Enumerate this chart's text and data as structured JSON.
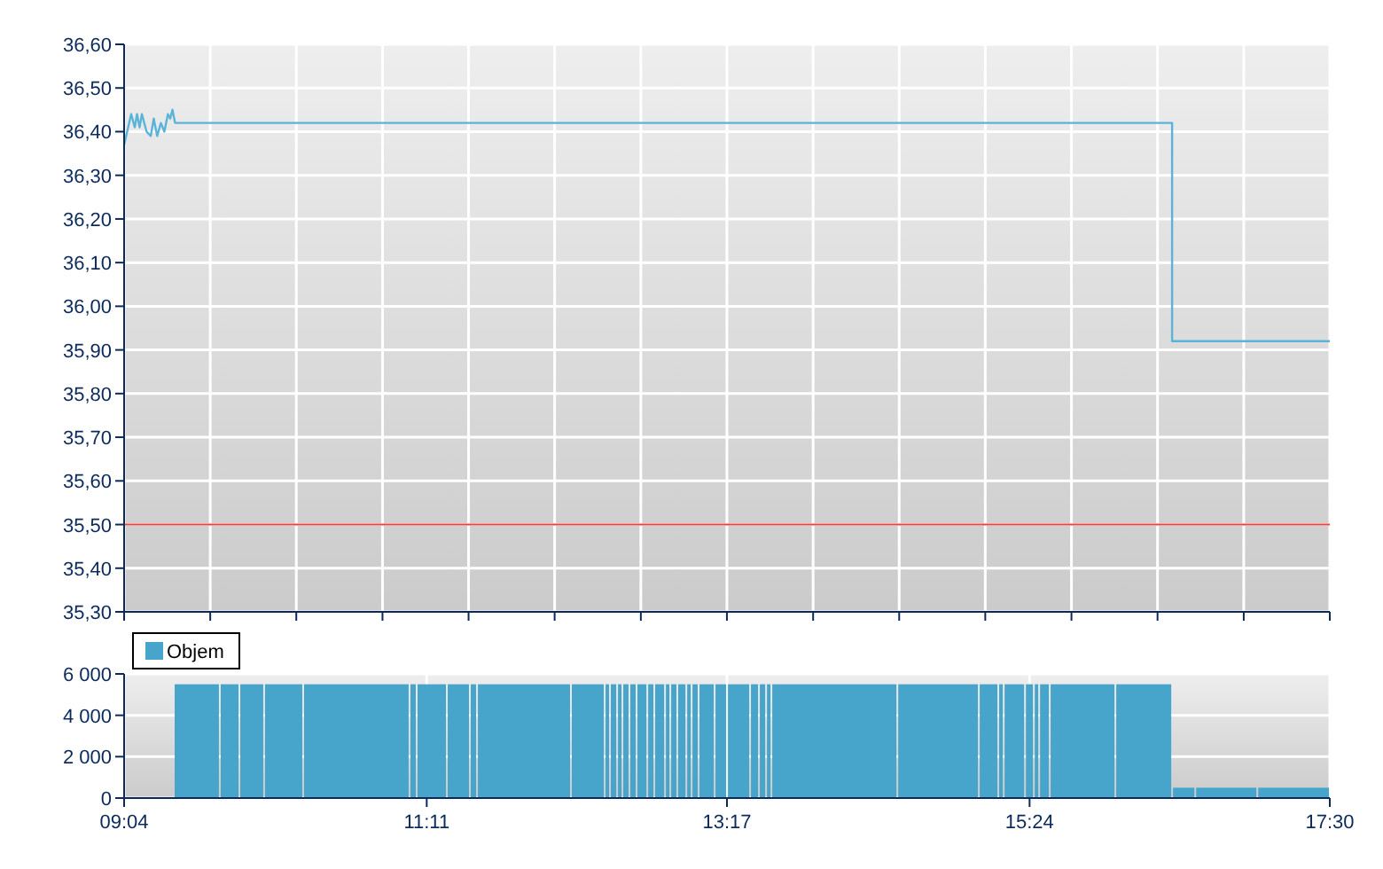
{
  "chart_data": [
    {
      "type": "line",
      "xlim": [
        9.0667,
        17.5
      ],
      "xticks": [
        {
          "value": 9.0667,
          "label": null
        },
        {
          "value": 9.669,
          "label": null
        },
        {
          "value": 10.271,
          "label": null
        },
        {
          "value": 10.874,
          "label": null
        },
        {
          "value": 11.476,
          "label": null
        },
        {
          "value": 12.078,
          "label": null
        },
        {
          "value": 12.681,
          "label": null
        },
        {
          "value": 13.283,
          "label": null
        },
        {
          "value": 13.886,
          "label": null
        },
        {
          "value": 14.488,
          "label": null
        },
        {
          "value": 15.09,
          "label": null
        },
        {
          "value": 15.693,
          "label": null
        },
        {
          "value": 16.295,
          "label": null
        },
        {
          "value": 16.898,
          "label": null
        },
        {
          "value": 17.5,
          "label": null
        }
      ],
      "ylim": [
        35.3,
        36.6
      ],
      "yticks": [
        {
          "value": 35.3,
          "label": "35,30"
        },
        {
          "value": 35.4,
          "label": "35,40"
        },
        {
          "value": 35.5,
          "label": "35,50"
        },
        {
          "value": 35.6,
          "label": "35,60"
        },
        {
          "value": 35.7,
          "label": "35,70"
        },
        {
          "value": 35.8,
          "label": "35,80"
        },
        {
          "value": 35.9,
          "label": "35,90"
        },
        {
          "value": 36.0,
          "label": "36,00"
        },
        {
          "value": 36.1,
          "label": "36,10"
        },
        {
          "value": 36.2,
          "label": "36,20"
        },
        {
          "value": 36.3,
          "label": "36,30"
        },
        {
          "value": 36.4,
          "label": "36,40"
        },
        {
          "value": 36.5,
          "label": "36,50"
        },
        {
          "value": 36.6,
          "label": "36,60"
        }
      ],
      "tick_labels": "y",
      "grid": true,
      "legend": false,
      "ref_lines": [
        {
          "axis": "y",
          "value": 35.5,
          "color": "#e8453c"
        }
      ],
      "series": [
        {
          "color": "#5ab4da",
          "x": [
            9.067,
            9.088,
            9.116,
            9.141,
            9.157,
            9.175,
            9.191,
            9.224,
            9.253,
            9.274,
            9.298,
            9.324,
            9.348,
            9.373,
            9.389,
            9.405,
            9.423,
            16.397,
            16.397,
            17.5
          ],
          "values": [
            36.37,
            36.4,
            36.44,
            36.41,
            36.44,
            36.41,
            36.44,
            36.4,
            36.39,
            36.43,
            36.39,
            36.42,
            36.4,
            36.44,
            36.43,
            36.45,
            36.42,
            36.42,
            35.92,
            35.92
          ]
        }
      ]
    },
    {
      "type": "bar",
      "xlim": [
        9.0667,
        17.5
      ],
      "xticks": [
        {
          "value": 9.0667,
          "label": "09:04"
        },
        {
          "value": 11.1833,
          "label": "11:11"
        },
        {
          "value": 13.2833,
          "label": "13:17"
        },
        {
          "value": 15.4,
          "label": "15:24"
        },
        {
          "value": 17.5,
          "label": "17:30"
        }
      ],
      "ylim": [
        0,
        6000
      ],
      "yticks": [
        {
          "value": 0,
          "label": "0"
        },
        {
          "value": 2000,
          "label": "2 000"
        },
        {
          "value": 4000,
          "label": "4 000"
        },
        {
          "value": 6000,
          "label": "6 000"
        }
      ],
      "grid": true,
      "legend": "top left",
      "series": [
        {
          "name": "Objem",
          "color": "#47a5cc",
          "x": [
            9.575,
            9.8045,
            9.9595,
            10.1825,
            10.691,
            11.088,
            11.2185,
            11.4045,
            11.51,
            11.8635,
            12.31,
            12.4465,
            12.49,
            12.5335,
            12.5765,
            12.626,
            12.6885,
            12.7505,
            12.8125,
            12.8685,
            12.9115,
            12.9675,
            13.0175,
            13.0605,
            13.141,
            13.2405,
            13.3645,
            13.476,
            13.532,
            13.5755,
            14.0345,
            14.76,
            15.113,
            15.2,
            15.2935,
            15.399,
            15.4485,
            15.504,
            15.7705,
            16.1985,
            16.478,
            16.776,
            17.2465
          ],
          "values": [
            5500,
            5500,
            5500,
            5500,
            5500,
            5500,
            5500,
            5500,
            5500,
            5500,
            5500,
            5500,
            5500,
            5500,
            5500,
            5500,
            5500,
            5500,
            5500,
            5500,
            5500,
            5500,
            5500,
            5500,
            5500,
            5500,
            5500,
            5500,
            5500,
            5500,
            5500,
            5500,
            5500,
            5500,
            5500,
            5500,
            5500,
            5500,
            5500,
            5500,
            500,
            500,
            500
          ]
        }
      ]
    }
  ]
}
